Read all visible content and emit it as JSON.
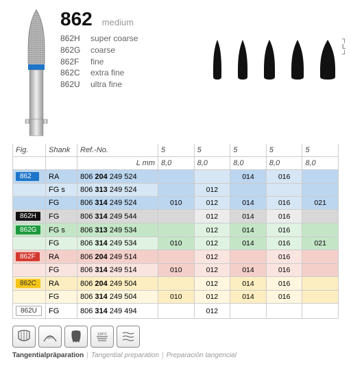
{
  "header": {
    "title": "862",
    "subtitle": "medium",
    "variants": [
      {
        "code": "862H",
        "label": "super coarse"
      },
      {
        "code": "862G",
        "label": "coarse"
      },
      {
        "code": "862F",
        "label": "fine"
      },
      {
        "code": "862C",
        "label": "extra fine"
      },
      {
        "code": "862U",
        "label": "ultra fine"
      }
    ],
    "tip_labels": [
      "5",
      "5",
      "5",
      "5",
      "5"
    ],
    "L_row": [
      "8,0",
      "8,0",
      "8,0",
      "8,0",
      "8,0"
    ],
    "L_label": "L mm",
    "bracket": "L"
  },
  "columns": {
    "fig": "Fig.",
    "shank": "Shank",
    "ref": "Ref.-No."
  },
  "colors": {
    "862": "#1e76c9",
    "862H": "#111111",
    "862G": "#1d9a3d",
    "862F": "#d33a2f",
    "862C": "#f5c518",
    "862U": "#ffffff",
    "row_862": [
      "#bcd6ef",
      "#d6e6f4"
    ],
    "row_862H": [
      "#d8d8d8",
      "#ececec"
    ],
    "row_862G": [
      "#c4e6c7",
      "#e0f2e1"
    ],
    "row_862F": [
      "#f4cfc9",
      "#fae4e0"
    ],
    "row_862C": [
      "#fdeec1",
      "#fef6de"
    ],
    "row_862U": [
      "#ffffff",
      "#ffffff"
    ]
  },
  "rows": [
    {
      "fig": "862",
      "badge": "862",
      "shank": "RA",
      "ref": [
        "806 ",
        "204",
        " 249 524"
      ],
      "cells": [
        "",
        "",
        "014",
        "016",
        ""
      ]
    },
    {
      "fig": "862",
      "shank": "FG s",
      "ref": [
        "806 ",
        "313",
        " 249 524"
      ],
      "cells": [
        "",
        "012",
        "",
        "",
        ""
      ]
    },
    {
      "fig": "862",
      "shank": "FG",
      "ref": [
        "806 ",
        "314",
        " 249 524"
      ],
      "cells": [
        "010",
        "012",
        "014",
        "016",
        "021"
      ]
    },
    {
      "fig": "862H",
      "badge": "862H",
      "shank": "FG",
      "ref": [
        "806 ",
        "314",
        " 249 544"
      ],
      "cells": [
        "",
        "012",
        "014",
        "016",
        ""
      ]
    },
    {
      "fig": "862G",
      "badge": "862G",
      "shank": "FG s",
      "ref": [
        "806 ",
        "313",
        " 249 534"
      ],
      "cells": [
        "",
        "012",
        "014",
        "016",
        ""
      ]
    },
    {
      "fig": "862G",
      "shank": "FG",
      "ref": [
        "806 ",
        "314",
        " 249 534"
      ],
      "cells": [
        "010",
        "012",
        "014",
        "016",
        "021"
      ]
    },
    {
      "fig": "862F",
      "badge": "862F",
      "shank": "RA",
      "ref": [
        "806 ",
        "204",
        " 249 514"
      ],
      "cells": [
        "",
        "012",
        "",
        "016",
        ""
      ]
    },
    {
      "fig": "862F",
      "shank": "FG",
      "ref": [
        "806 ",
        "314",
        " 249 514"
      ],
      "cells": [
        "010",
        "012",
        "014",
        "016",
        ""
      ]
    },
    {
      "fig": "862C",
      "badge": "862C",
      "shank": "RA",
      "ref": [
        "806 ",
        "204",
        " 249 504"
      ],
      "cells": [
        "",
        "012",
        "014",
        "016",
        ""
      ]
    },
    {
      "fig": "862C",
      "shank": "FG",
      "ref": [
        "806 ",
        "314",
        " 249 504"
      ],
      "cells": [
        "010",
        "012",
        "014",
        "016",
        ""
      ]
    },
    {
      "fig": "862U",
      "badge": "862U",
      "shank": "FG",
      "ref": [
        "806 ",
        "314",
        " 249 494"
      ],
      "cells": [
        "",
        "012",
        "",
        "",
        ""
      ]
    }
  ],
  "caption": {
    "primary": "Tangentialpräparation",
    "alt1": "Tangential preparation",
    "alt2": "Preparación tangencial"
  }
}
